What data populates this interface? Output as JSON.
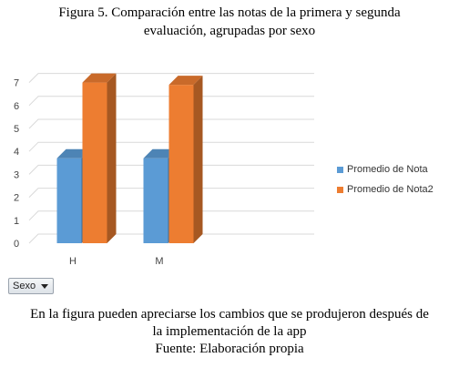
{
  "caption_top": {
    "line1": "Figura 5. Comparación entre las notas de la primera y segunda",
    "line2": "evaluación, agrupadas por sexo"
  },
  "pivot_button": {
    "label": "Sexo"
  },
  "caption_bottom": {
    "line1": "En la figura pueden apreciarse los cambios que se produjeron después de",
    "line2": "la implementación de la app",
    "line3": "Fuente: Elaboración propia"
  },
  "colors": {
    "series1": "#5b9bd5",
    "series2": "#ed7d31",
    "grid": "#d9d9d9",
    "axis_text": "#444444"
  },
  "chart_data": {
    "type": "bar",
    "style": "3d-clustered-column",
    "categories": [
      "H",
      "M"
    ],
    "series": [
      {
        "name": "Promedio de Nota",
        "values": [
          3.7,
          3.7
        ]
      },
      {
        "name": "Promedio de Nota2",
        "values": [
          7.0,
          6.9
        ]
      }
    ],
    "y_ticks": [
      "0",
      "1",
      "2",
      "3",
      "4",
      "5",
      "6",
      "7"
    ],
    "ylim": [
      0,
      7.5
    ],
    "grid": true,
    "legend_position": "right",
    "title": "",
    "xlabel": "",
    "ylabel": ""
  }
}
